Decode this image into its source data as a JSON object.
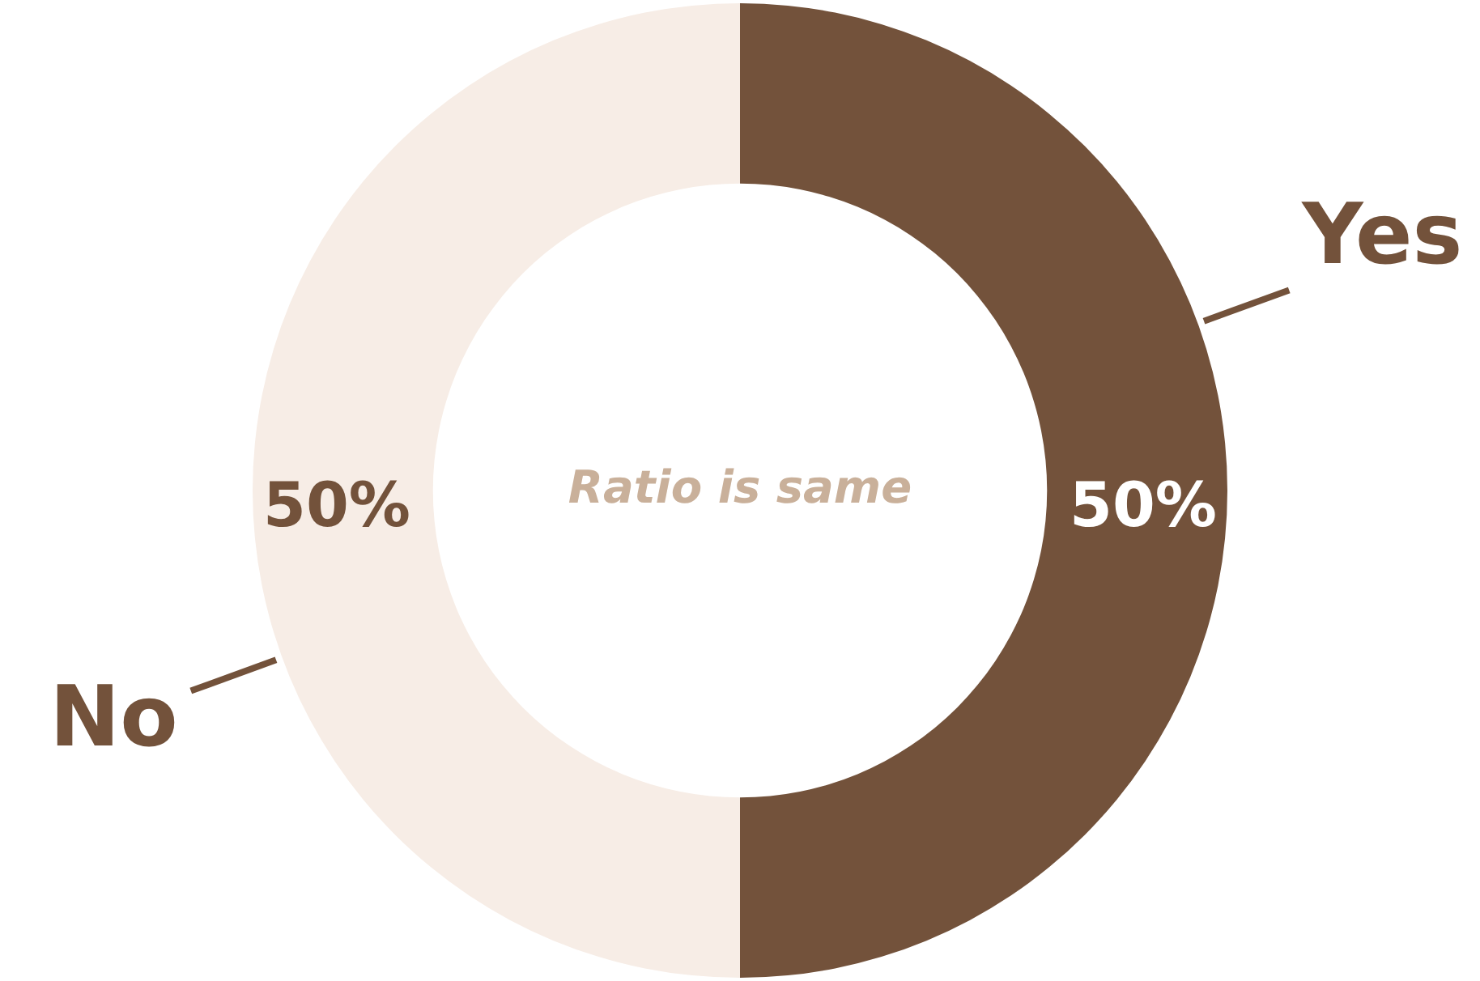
{
  "chart_data": {
    "type": "donut",
    "categories": [
      "Yes",
      "No"
    ],
    "values": [
      50,
      50
    ],
    "colors": [
      "#73523b",
      "#f7ede6"
    ],
    "value_labels": [
      "50%",
      "50%"
    ],
    "annotations": [
      "Ratio is same"
    ]
  }
}
